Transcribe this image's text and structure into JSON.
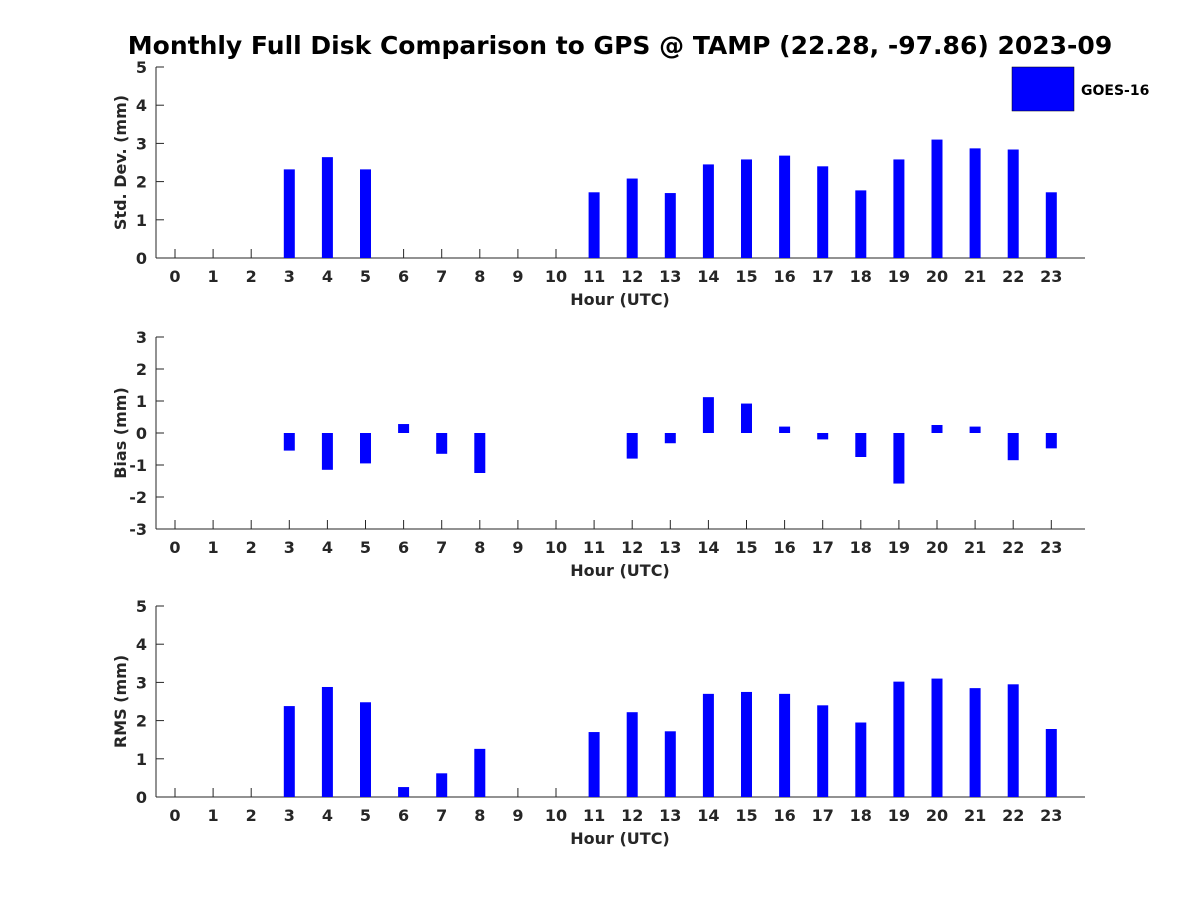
{
  "chart_data": {
    "title": "Monthly Full Disk Comparison to GPS @ TAMP (22.28, -97.86) 2023-09",
    "type": "bar",
    "legend": {
      "entries": [
        "GOES-16"
      ],
      "placement": "top-right",
      "color": "#0000ff"
    },
    "categories": [
      "0",
      "1",
      "2",
      "3",
      "4",
      "5",
      "6",
      "7",
      "8",
      "9",
      "10",
      "11",
      "12",
      "13",
      "14",
      "15",
      "16",
      "17",
      "18",
      "19",
      "20",
      "21",
      "22",
      "23"
    ],
    "panels": [
      {
        "type": "bar",
        "xlabel": "Hour (UTC)",
        "ylabel": "Std. Dev. (mm)",
        "ylim": [
          0,
          5
        ],
        "yticks": [
          "0",
          "1",
          "2",
          "3",
          "4",
          "5"
        ],
        "series": [
          {
            "name": "GOES-16",
            "values": [
              null,
              null,
              null,
              2.32,
              2.64,
              2.32,
              null,
              null,
              null,
              null,
              null,
              1.72,
              2.08,
              1.7,
              2.45,
              2.58,
              2.68,
              2.4,
              1.77,
              2.58,
              3.1,
              2.87,
              2.84,
              1.72
            ]
          }
        ]
      },
      {
        "type": "bar",
        "xlabel": "Hour (UTC)",
        "ylabel": "Bias (mm)",
        "ylim": [
          -3,
          3
        ],
        "yticks": [
          "-3",
          "-2",
          "-1",
          "0",
          "1",
          "2",
          "3"
        ],
        "series": [
          {
            "name": "GOES-16",
            "values": [
              null,
              null,
              null,
              -0.55,
              -1.15,
              -0.95,
              0.28,
              -0.65,
              -1.25,
              null,
              null,
              null,
              -0.8,
              -0.32,
              1.12,
              0.92,
              0.2,
              -0.2,
              -0.75,
              -1.58,
              0.25,
              0.2,
              -0.85,
              -0.48
            ]
          }
        ]
      },
      {
        "type": "bar",
        "xlabel": "Hour (UTC)",
        "ylabel": "RMS (mm)",
        "ylim": [
          0,
          5
        ],
        "yticks": [
          "0",
          "1",
          "2",
          "3",
          "4",
          "5"
        ],
        "series": [
          {
            "name": "GOES-16",
            "values": [
              null,
              null,
              null,
              2.38,
              2.88,
              2.48,
              0.26,
              0.62,
              1.26,
              null,
              null,
              1.7,
              2.22,
              1.72,
              2.7,
              2.75,
              2.7,
              2.4,
              1.95,
              3.02,
              3.1,
              2.85,
              2.95,
              1.78
            ]
          }
        ]
      }
    ]
  }
}
